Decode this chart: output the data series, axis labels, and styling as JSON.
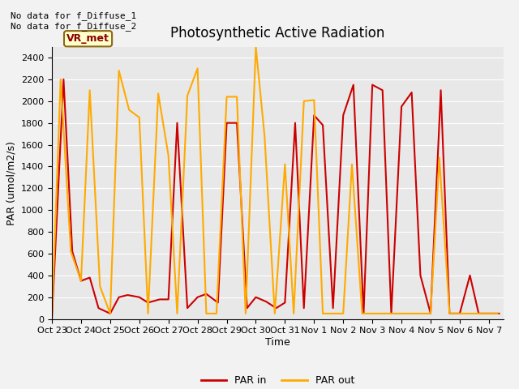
{
  "title": "Photosynthetic Active Radiation",
  "ylabel": "PAR (umol/m2/s)",
  "xlabel": "Time",
  "annotation_text": "No data for f_Diffuse_1\nNo data for f_Diffuse_2",
  "legend_label1": "PAR in",
  "legend_label2": "PAR out",
  "legend_box_label": "VR_met",
  "ylim": [
    0,
    2500
  ],
  "yticks": [
    0,
    200,
    400,
    600,
    800,
    1000,
    1200,
    1400,
    1600,
    1800,
    2000,
    2200,
    2400
  ],
  "x_tick_labels": [
    "Oct 23",
    "Oct 24",
    "Oct 25",
    "Oct 26",
    "Oct 27",
    "Oct 28",
    "Oct 29",
    "Oct 30",
    "Oct 31",
    "Nov 1",
    "Nov 2",
    "Nov 3",
    "Nov 4",
    "Nov 5",
    "Nov 6",
    "Nov 7"
  ],
  "color_in": "#cc0000",
  "color_out": "#ffaa00",
  "bg_color": "#e8e8e8",
  "fig_color": "#f2f2f2",
  "par_in_x": [
    0,
    0.4,
    0.7,
    1.0,
    1.3,
    1.6,
    2.0,
    2.3,
    2.6,
    3.0,
    3.3,
    3.7,
    4.0,
    4.3,
    4.65,
    5.0,
    5.3,
    5.7,
    6.0,
    6.35,
    6.7,
    7.0,
    7.35,
    7.7,
    8.0,
    8.35,
    8.65,
    9.0,
    9.3,
    9.65,
    10.0,
    10.35,
    10.7,
    11.0,
    11.35,
    11.65,
    12.0,
    12.35,
    12.65,
    13.0,
    13.35,
    13.65,
    14.0,
    14.35,
    14.65,
    15.0,
    15.35
  ],
  "par_in_y": [
    0,
    2200,
    620,
    350,
    380,
    100,
    50,
    200,
    220,
    200,
    150,
    180,
    180,
    1800,
    100,
    200,
    230,
    150,
    1800,
    1800,
    100,
    200,
    160,
    100,
    150,
    1800,
    100,
    1870,
    1780,
    100,
    1870,
    2150,
    50,
    2150,
    2100,
    50,
    1950,
    2080,
    400,
    50,
    2100,
    50,
    50,
    400,
    50,
    50,
    50
  ],
  "par_out_x": [
    0,
    0.3,
    0.65,
    1.0,
    1.3,
    1.65,
    2.0,
    2.3,
    2.65,
    3.0,
    3.3,
    3.65,
    4.0,
    4.3,
    4.65,
    5.0,
    5.3,
    5.65,
    6.0,
    6.35,
    6.65,
    7.0,
    7.3,
    7.65,
    8.0,
    8.3,
    8.65,
    9.0,
    9.3,
    9.65,
    10.0,
    10.3,
    10.65,
    11.0,
    11.3,
    11.65,
    12.0,
    12.3,
    12.65,
    13.0,
    13.3,
    13.65,
    14.0,
    14.3,
    14.65,
    15.0,
    15.3
  ],
  "par_out_y": [
    20,
    2200,
    620,
    350,
    2100,
    300,
    50,
    2280,
    1920,
    1850,
    50,
    2070,
    1500,
    50,
    2050,
    2300,
    50,
    50,
    2040,
    2040,
    50,
    2500,
    1680,
    50,
    1420,
    50,
    2000,
    2010,
    50,
    50,
    50,
    1420,
    50,
    50,
    50,
    50,
    50,
    50,
    50,
    50,
    1480,
    50,
    50,
    50,
    50,
    50,
    50
  ]
}
